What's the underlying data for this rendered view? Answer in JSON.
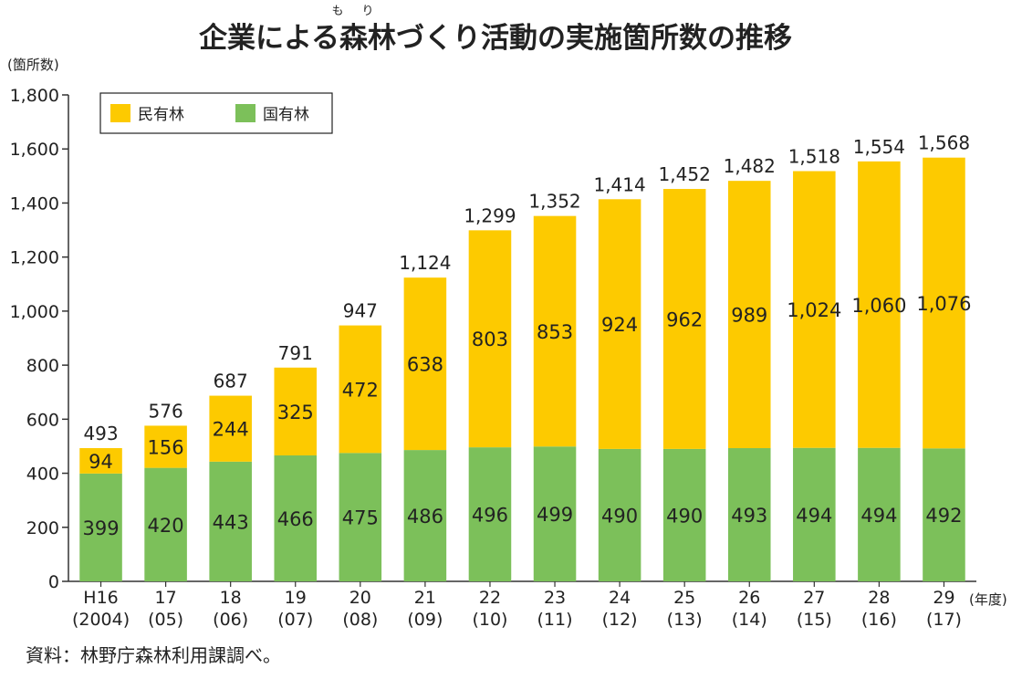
{
  "chart_data": {
    "type": "bar",
    "stacked": true,
    "title": "企業による森林づくり活動の実施箇所数の推移",
    "title_ruby": [
      {
        "base": "森",
        "ruby": "も"
      },
      {
        "base": "林",
        "ruby": "り"
      }
    ],
    "ylabel": "(箇所数)",
    "xlabel": "(年度)",
    "ylim": [
      0,
      1800
    ],
    "yticks": [
      0,
      200,
      400,
      600,
      800,
      1000,
      1200,
      1400,
      1600,
      1800
    ],
    "ytick_labels": [
      "0",
      "200",
      "400",
      "600",
      "800",
      "1,000",
      "1,200",
      "1,400",
      "1,600",
      "1,800"
    ],
    "categories": [
      {
        "line1": "H16",
        "line2": "(2004)"
      },
      {
        "line1": "17",
        "line2": "(05)"
      },
      {
        "line1": "18",
        "line2": "(06)"
      },
      {
        "line1": "19",
        "line2": "(07)"
      },
      {
        "line1": "20",
        "line2": "(08)"
      },
      {
        "line1": "21",
        "line2": "(09)"
      },
      {
        "line1": "22",
        "line2": "(10)"
      },
      {
        "line1": "23",
        "line2": "(11)"
      },
      {
        "line1": "24",
        "line2": "(12)"
      },
      {
        "line1": "25",
        "line2": "(13)"
      },
      {
        "line1": "26",
        "line2": "(14)"
      },
      {
        "line1": "27",
        "line2": "(15)"
      },
      {
        "line1": "28",
        "line2": "(16)"
      },
      {
        "line1": "29",
        "line2": "(17)"
      }
    ],
    "series": [
      {
        "name": "国有林",
        "color": "#7cc05a",
        "values": [
          399,
          420,
          443,
          466,
          475,
          486,
          496,
          499,
          490,
          490,
          493,
          494,
          494,
          492
        ]
      },
      {
        "name": "民有林",
        "color": "#fdca00",
        "values": [
          94,
          156,
          244,
          325,
          472,
          638,
          803,
          853,
          924,
          962,
          989,
          1024,
          1060,
          1076
        ]
      }
    ],
    "totals": [
      "493",
      "576",
      "687",
      "791",
      "947",
      "1,124",
      "1,299",
      "1,352",
      "1,414",
      "1,452",
      "1,482",
      "1,518",
      "1,554",
      "1,568"
    ],
    "legend": [
      "民有林",
      "国有林"
    ],
    "legend_position": "top-left",
    "source": "資料：林野庁森林利用課調べ。"
  }
}
